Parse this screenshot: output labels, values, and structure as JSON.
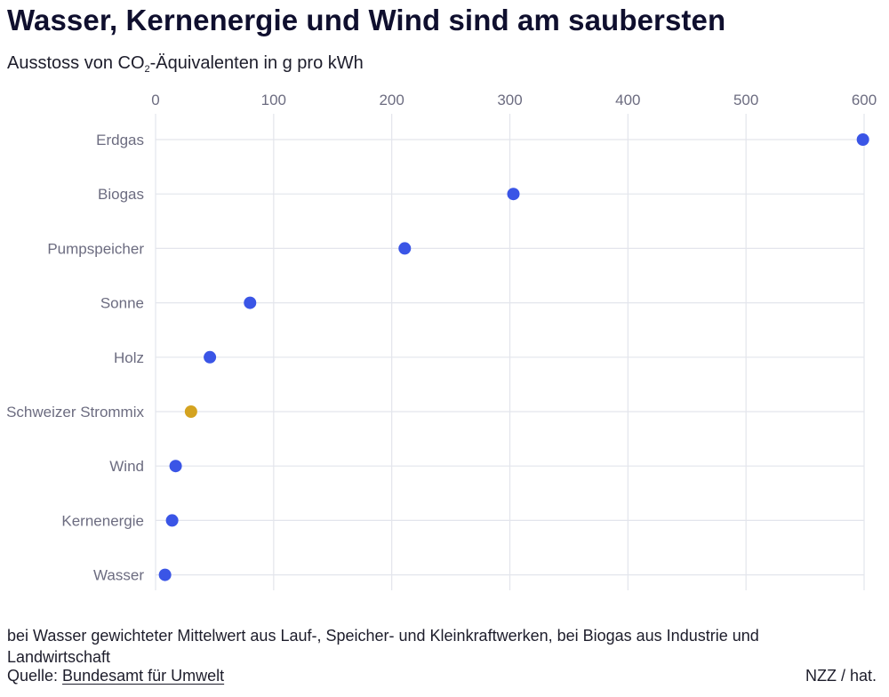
{
  "header": {
    "title": "Wasser, Kernenergie und Wind sind am saubersten",
    "subtitle_pre": "Ausstoss von CO",
    "subtitle_sub": "2",
    "subtitle_post": "-Äquivalenten in g pro kWh"
  },
  "footer": {
    "note": "bei Wasser gewichteter Mittelwert aus Lauf-, Speicher- und Kleinkraftwerken, bei Biogas aus Industrie und Landwirtschaft",
    "source_prefix": "Quelle: ",
    "source_link": "Bundesamt für Umwelt",
    "credit": "NZZ / hat."
  },
  "colors": {
    "dot": "#3a55e6",
    "highlight": "#d4a320",
    "grid": "#e3e5ec",
    "tick_text": "#6c6c80"
  },
  "chart_data": {
    "type": "scatter",
    "orientation": "horizontal dot plot",
    "xlim": [
      0,
      600
    ],
    "xticks": [
      0,
      100,
      200,
      300,
      400,
      500,
      600
    ],
    "grid": true,
    "categories": [
      "Erdgas",
      "Biogas",
      "Pumpspeicher",
      "Sonne",
      "Holz",
      "Schweizer Strommix",
      "Wind",
      "Kernenergie",
      "Wasser"
    ],
    "values": [
      599,
      303,
      211,
      80,
      46,
      30,
      17,
      14,
      8
    ],
    "highlight": [
      "Schweizer Strommix"
    ]
  }
}
